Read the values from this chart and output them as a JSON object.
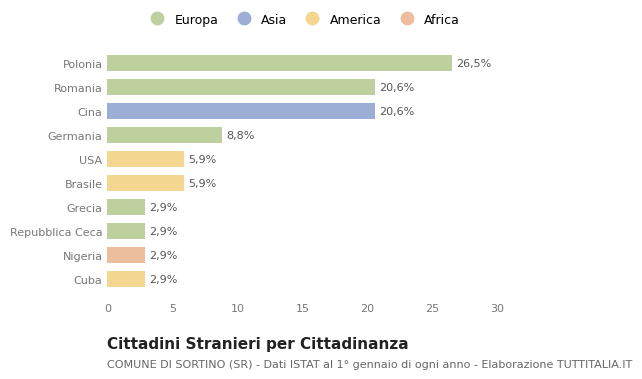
{
  "categories": [
    "Polonia",
    "Romania",
    "Cina",
    "Germania",
    "USA",
    "Brasile",
    "Grecia",
    "Repubblica Ceca",
    "Nigeria",
    "Cuba"
  ],
  "values": [
    26.5,
    20.6,
    20.6,
    8.8,
    5.9,
    5.9,
    2.9,
    2.9,
    2.9,
    2.9
  ],
  "labels": [
    "26,5%",
    "20,6%",
    "20,6%",
    "8,8%",
    "5,9%",
    "5,9%",
    "2,9%",
    "2,9%",
    "2,9%",
    "2,9%"
  ],
  "colors": [
    "#a8c17c",
    "#a8c17c",
    "#7b93c8",
    "#a8c17c",
    "#f0c96b",
    "#f0c96b",
    "#a8c17c",
    "#a8c17c",
    "#e8a87c",
    "#f0c96b"
  ],
  "legend_labels": [
    "Europa",
    "Asia",
    "America",
    "Africa"
  ],
  "legend_colors": [
    "#a8c17c",
    "#7b93c8",
    "#f0c96b",
    "#e8a87c"
  ],
  "xlim": [
    0,
    30
  ],
  "xticks": [
    0,
    5,
    10,
    15,
    20,
    25,
    30
  ],
  "title": "Cittadini Stranieri per Cittadinanza",
  "subtitle": "COMUNE DI SORTINO (SR) - Dati ISTAT al 1° gennaio di ogni anno - Elaborazione TUTTITALIA.IT",
  "background_color": "#ffffff",
  "bar_height": 0.65,
  "title_fontsize": 11,
  "subtitle_fontsize": 8,
  "label_fontsize": 8,
  "tick_fontsize": 8,
  "legend_fontsize": 9
}
